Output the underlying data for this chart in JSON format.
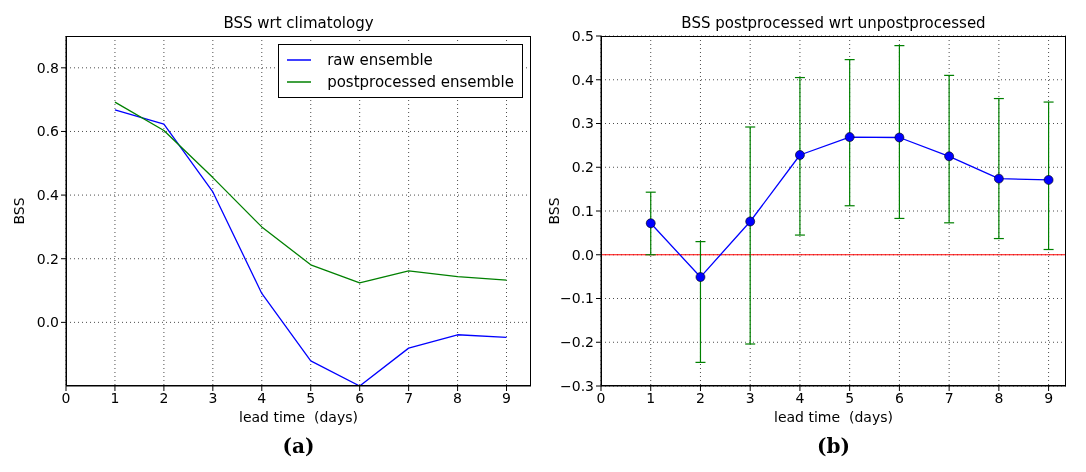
{
  "chart_data": [
    {
      "type": "line",
      "title": "BSS wrt climatology",
      "xlabel": "lead time  (days)",
      "ylabel": "BSS",
      "x": [
        1,
        2,
        3,
        4,
        5,
        6,
        7,
        8,
        9
      ],
      "series": [
        {
          "name": "raw ensemble",
          "color": "#0000ff",
          "values": [
            0.668,
            0.623,
            0.41,
            0.091,
            -0.121,
            -0.2,
            -0.081,
            -0.039,
            -0.047
          ]
        },
        {
          "name": "postprocessed ensemble",
          "color": "#008000",
          "values": [
            0.692,
            0.603,
            0.455,
            0.3,
            0.181,
            0.124,
            0.162,
            0.144,
            0.133
          ]
        }
      ],
      "xlim": [
        0,
        9.5
      ],
      "ylim": [
        -0.2,
        0.9
      ],
      "xticks": [
        0,
        1,
        2,
        3,
        4,
        5,
        6,
        7,
        8,
        9
      ],
      "yticks": [
        {
          "value": 0,
          "label": "0.0"
        },
        {
          "value": 0.2,
          "label": "0.2"
        },
        {
          "value": 0.4,
          "label": "0.4"
        },
        {
          "value": 0.6,
          "label": "0.6"
        },
        {
          "value": 0.8,
          "label": "0.8"
        }
      ],
      "grid": true,
      "legend": "top right",
      "line_style": "solid",
      "annotations": [
        "(a)"
      ]
    },
    {
      "type": "line",
      "title": "BSS postprocessed wrt unpostprocessed",
      "xlabel": "lead time  (days)",
      "ylabel": "BSS",
      "x": [
        1,
        2,
        3,
        4,
        5,
        6,
        7,
        8,
        9
      ],
      "series": [
        {
          "color": "#0000ff",
          "values": [
            0.072,
            -0.051,
            0.076,
            0.228,
            0.269,
            0.268,
            0.225,
            0.174,
            0.171
          ],
          "errors": [
            [
              0.0,
              0.143
            ],
            [
              -0.246,
              0.03
            ],
            [
              -0.204,
              0.292
            ],
            [
              0.045,
              0.405
            ],
            [
              0.112,
              0.446
            ],
            [
              0.083,
              0.478
            ],
            [
              0.073,
              0.41
            ],
            [
              0.037,
              0.357
            ],
            [
              0.012,
              0.349
            ]
          ]
        }
      ],
      "xlim": [
        0,
        9.35
      ],
      "ylim": [
        -0.3,
        0.5
      ],
      "xticks": [
        0,
        1,
        2,
        3,
        4,
        5,
        6,
        7,
        8,
        9
      ],
      "yticks": [
        {
          "value": -0.3,
          "label": "−0.3"
        },
        {
          "value": -0.2,
          "label": "−0.2"
        },
        {
          "value": -0.1,
          "label": "−0.1"
        },
        {
          "value": 0,
          "label": "0.0"
        },
        {
          "value": 0.1,
          "label": "0.1"
        },
        {
          "value": 0.2,
          "label": "0.2"
        },
        {
          "value": 0.3,
          "label": "0.3"
        },
        {
          "value": 0.4,
          "label": "0.4"
        },
        {
          "value": 0.5,
          "label": "0.5"
        }
      ],
      "grid": true,
      "marker": "circle",
      "line_style": "solid",
      "ref_lines": [
        {
          "axis": "y",
          "value": 0,
          "color": "#ff0000"
        }
      ],
      "annotations": [
        "(b)"
      ]
    }
  ]
}
